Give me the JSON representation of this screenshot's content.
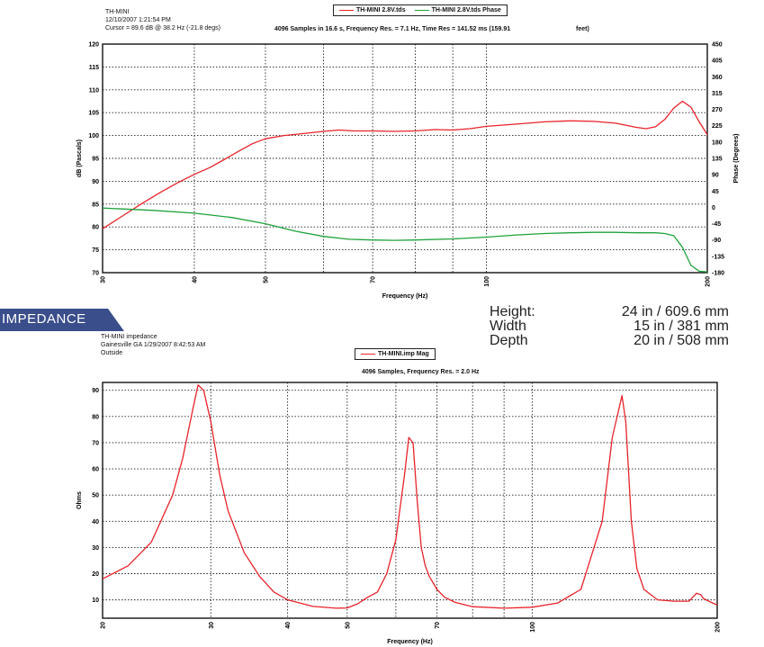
{
  "spl_header": {
    "lines": [
      "TH-MINI",
      "12/10/2007 1:21:54 PM",
      "Cursor = 89.6 dB @ 38.2 Hz (-21.8 degs)"
    ],
    "subtitle": "4096 Samples in 16.6 s, Frequency Res. = 7.1 Hz, Time Res = 141.52 ms (159.91",
    "subtitle_tail": "feet)",
    "legend": [
      {
        "label": "TH-MINI 2.8V.tds",
        "color": "#e8232a"
      },
      {
        "label": "TH-MINI 2.8V.tds Phase",
        "color": "#1ea23a"
      }
    ]
  },
  "impedance_header": {
    "banner": "IMPEDANCE",
    "lines": [
      "TH-MINI impedance",
      "Gainesville GA 1/29/2007 8:42:53 AM",
      "Outside"
    ],
    "subtitle": "4096 Samples, Frequency Res. = 2.0 Hz",
    "legend": [
      {
        "label": "TH-MINI.imp Mag",
        "color": "#e8232a"
      }
    ]
  },
  "dimensions": [
    {
      "label": "Height:",
      "value": "24 in  / 609.6 mm"
    },
    {
      "label": "Width",
      "value": "15 in / 381 mm"
    },
    {
      "label": "Depth",
      "value": "20 in / 508 mm"
    }
  ],
  "chart_data": [
    {
      "type": "line",
      "xlabel": "Frequency (Hz)",
      "ylabel": "dB (Pascals)",
      "y2label": "Phase (Degrees)",
      "xscale": "log",
      "xlim": [
        30,
        200
      ],
      "ylim": [
        70,
        120
      ],
      "y2lim": [
        -180,
        450
      ],
      "xticks": [
        30,
        40,
        50,
        70,
        100,
        200
      ],
      "xtick_labels": [
        "30",
        "40",
        "50",
        "70",
        "100",
        "200"
      ],
      "xgrid": [
        30,
        40,
        50,
        60,
        70,
        80,
        90,
        100,
        200
      ],
      "yticks": [
        70,
        75,
        80,
        85,
        90,
        95,
        100,
        105,
        110,
        115,
        120
      ],
      "y2ticks": [
        -180,
        -135,
        -90,
        -45,
        0,
        45,
        90,
        135,
        180,
        225,
        270,
        315,
        360,
        405,
        450
      ],
      "grid": true,
      "series": [
        {
          "name": "TH-MINI 2.8V.tds",
          "axis": "left",
          "color": "#e8232a",
          "x": [
            30,
            32,
            34,
            36,
            38,
            40,
            42,
            44,
            46,
            48,
            50,
            53,
            56,
            60,
            63,
            66,
            70,
            75,
            80,
            85,
            90,
            95,
            100,
            110,
            120,
            130,
            140,
            150,
            160,
            165,
            170,
            175,
            180,
            185,
            190,
            195,
            200
          ],
          "y": [
            79.6,
            82.5,
            85.2,
            87.6,
            89.7,
            91.5,
            93.0,
            94.8,
            96.6,
            98.2,
            99.3,
            100.0,
            100.4,
            100.9,
            101.2,
            101.0,
            101.0,
            100.9,
            101.0,
            101.3,
            101.2,
            101.5,
            102.0,
            102.5,
            103.0,
            103.2,
            103.1,
            102.7,
            101.8,
            101.5,
            101.9,
            103.5,
            106.0,
            107.5,
            106.2,
            103.0,
            100.2
          ]
        },
        {
          "name": "TH-MINI 2.8V.tds Phase",
          "axis": "right",
          "color": "#1ea23a",
          "x": [
            30,
            35,
            40,
            45,
            50,
            55,
            60,
            65,
            70,
            75,
            80,
            90,
            100,
            110,
            120,
            130,
            140,
            150,
            160,
            170,
            175,
            180,
            185,
            190,
            195,
            200
          ],
          "y": [
            -2,
            -8,
            -16,
            -28,
            -45,
            -66,
            -80,
            -88,
            -90,
            -91,
            -90,
            -87,
            -82,
            -76,
            -72,
            -70,
            -69,
            -69,
            -70,
            -70,
            -72,
            -78,
            -110,
            -160,
            -176,
            -178
          ]
        }
      ]
    },
    {
      "type": "line",
      "xlabel": "Frequency (Hz)",
      "ylabel": "Ohms",
      "xscale": "log",
      "xlim": [
        20,
        200
      ],
      "ylim": [
        3,
        93
      ],
      "xticks": [
        20,
        30,
        40,
        50,
        70,
        100,
        200
      ],
      "xtick_labels": [
        "20",
        "30",
        "40",
        "50",
        "70",
        "100",
        "200"
      ],
      "xgrid": [
        20,
        30,
        40,
        50,
        60,
        70,
        80,
        90,
        100,
        200
      ],
      "yticks": [
        10,
        20,
        30,
        40,
        50,
        60,
        70,
        80,
        90
      ],
      "grid": true,
      "series": [
        {
          "name": "TH-MINI.imp Mag",
          "axis": "left",
          "color": "#e8232a",
          "x": [
            20,
            22,
            24,
            26,
            27,
            28,
            28.6,
            29.2,
            30,
            31,
            32,
            34,
            36,
            38,
            40,
            44,
            48,
            50,
            52,
            54,
            56,
            58,
            60,
            62,
            63,
            64,
            65,
            66,
            67,
            68,
            70,
            72,
            75,
            80,
            90,
            100,
            110,
            120,
            130,
            135,
            140,
            142,
            145,
            148,
            152,
            160,
            170,
            180,
            185,
            188,
            190,
            195,
            200
          ],
          "y": [
            18,
            23,
            32,
            50,
            64,
            82,
            92,
            90,
            78,
            58,
            44,
            28,
            19,
            13,
            10,
            7.5,
            6.8,
            6.9,
            8.5,
            11,
            13,
            20,
            33,
            58,
            72,
            70,
            48,
            30,
            23,
            19,
            14,
            11,
            9,
            7.4,
            6.8,
            7.2,
            8.8,
            14,
            40,
            72,
            88,
            78,
            40,
            22,
            14,
            10,
            9.5,
            9.5,
            12.5,
            12,
            10.5,
            9.2,
            8
          ]
        }
      ]
    }
  ]
}
